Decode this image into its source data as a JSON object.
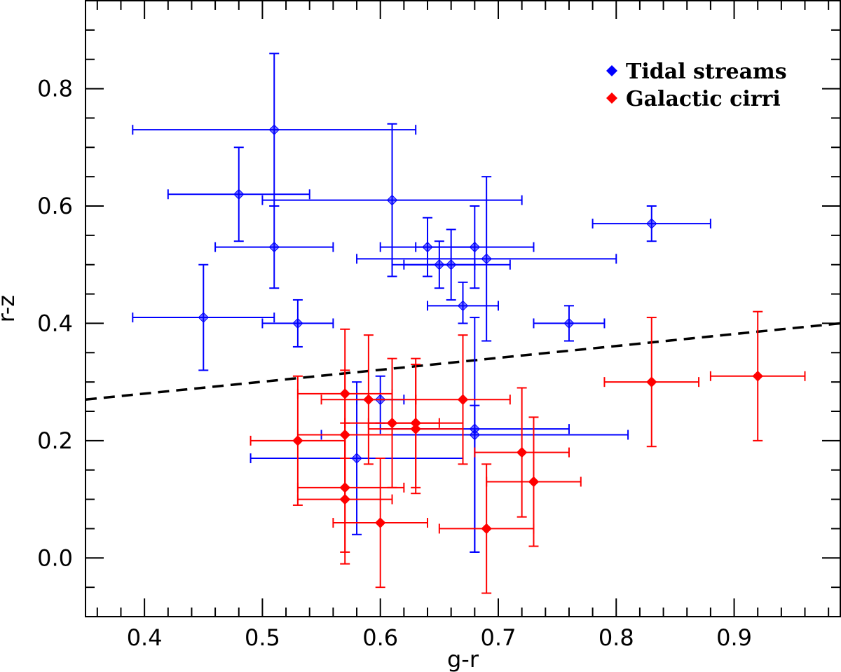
{
  "chart_data": {
    "type": "scatter",
    "title": "",
    "xlabel": "g-r",
    "ylabel": "r-z",
    "xlim": [
      0.35,
      0.99
    ],
    "ylim": [
      -0.1,
      0.95
    ],
    "xticks": [
      0.4,
      0.5,
      0.6,
      0.7,
      0.8,
      0.9
    ],
    "xtick_labels": [
      "0.4",
      "0.5",
      "0.6",
      "0.7",
      "0.8",
      "0.9"
    ],
    "yticks": [
      0.0,
      0.2,
      0.4,
      0.6,
      0.8
    ],
    "ytick_labels": [
      "0.0",
      "0.2",
      "0.4",
      "0.6",
      "0.8"
    ],
    "legend_position": "top-right",
    "divider_line": {
      "style": "dashed",
      "color": "#000000",
      "x": [
        0.35,
        0.99
      ],
      "y": [
        0.27,
        0.4
      ]
    },
    "series": [
      {
        "name": "Tidal streams",
        "color": "#0000ff",
        "marker": "diamond",
        "points": [
          {
            "x": 0.51,
            "y": 0.73,
            "xlo": 0.39,
            "xhi": 0.63,
            "ylo": 0.6,
            "yhi": 0.86
          },
          {
            "x": 0.48,
            "y": 0.62,
            "xlo": 0.42,
            "xhi": 0.54,
            "ylo": 0.54,
            "yhi": 0.7
          },
          {
            "x": 0.61,
            "y": 0.61,
            "xlo": 0.5,
            "xhi": 0.72,
            "ylo": 0.48,
            "yhi": 0.74
          },
          {
            "x": 0.51,
            "y": 0.53,
            "xlo": 0.46,
            "xhi": 0.56,
            "ylo": 0.46,
            "yhi": 0.6
          },
          {
            "x": 0.45,
            "y": 0.41,
            "xlo": 0.39,
            "xhi": 0.51,
            "ylo": 0.32,
            "yhi": 0.5
          },
          {
            "x": 0.53,
            "y": 0.4,
            "xlo": 0.5,
            "xhi": 0.56,
            "ylo": 0.36,
            "yhi": 0.44
          },
          {
            "x": 0.64,
            "y": 0.53,
            "xlo": 0.6,
            "xhi": 0.68,
            "ylo": 0.48,
            "yhi": 0.58
          },
          {
            "x": 0.65,
            "y": 0.5,
            "xlo": 0.62,
            "xhi": 0.68,
            "ylo": 0.46,
            "yhi": 0.54
          },
          {
            "x": 0.66,
            "y": 0.5,
            "xlo": 0.61,
            "xhi": 0.71,
            "ylo": 0.44,
            "yhi": 0.56
          },
          {
            "x": 0.68,
            "y": 0.53,
            "xlo": 0.63,
            "xhi": 0.73,
            "ylo": 0.46,
            "yhi": 0.6
          },
          {
            "x": 0.69,
            "y": 0.51,
            "xlo": 0.58,
            "xhi": 0.8,
            "ylo": 0.37,
            "yhi": 0.65
          },
          {
            "x": 0.67,
            "y": 0.43,
            "xlo": 0.64,
            "xhi": 0.7,
            "ylo": 0.4,
            "yhi": 0.47
          },
          {
            "x": 0.76,
            "y": 0.4,
            "xlo": 0.73,
            "xhi": 0.79,
            "ylo": 0.37,
            "yhi": 0.43
          },
          {
            "x": 0.83,
            "y": 0.57,
            "xlo": 0.78,
            "xhi": 0.88,
            "ylo": 0.54,
            "yhi": 0.6
          },
          {
            "x": 0.6,
            "y": 0.27,
            "xlo": 0.58,
            "xhi": 0.62,
            "ylo": 0.23,
            "yhi": 0.31
          },
          {
            "x": 0.68,
            "y": 0.22,
            "xlo": 0.6,
            "xhi": 0.76,
            "ylo": 0.01,
            "yhi": 0.26
          },
          {
            "x": 0.68,
            "y": 0.21,
            "xlo": 0.55,
            "xhi": 0.81,
            "ylo": 0.01,
            "yhi": 0.41
          },
          {
            "x": 0.58,
            "y": 0.17,
            "xlo": 0.49,
            "xhi": 0.67,
            "ylo": 0.04,
            "yhi": 0.3
          }
        ]
      },
      {
        "name": "Galactic cirri",
        "color": "#ff0000",
        "marker": "diamond",
        "points": [
          {
            "x": 0.53,
            "y": 0.2,
            "xlo": 0.49,
            "xhi": 0.57,
            "ylo": 0.09,
            "yhi": 0.31
          },
          {
            "x": 0.57,
            "y": 0.28,
            "xlo": 0.53,
            "xhi": 0.61,
            "ylo": 0.17,
            "yhi": 0.39
          },
          {
            "x": 0.57,
            "y": 0.21,
            "xlo": 0.53,
            "xhi": 0.61,
            "ylo": 0.1,
            "yhi": 0.32
          },
          {
            "x": 0.57,
            "y": 0.12,
            "xlo": 0.53,
            "xhi": 0.62,
            "ylo": 0.01,
            "yhi": 0.23
          },
          {
            "x": 0.57,
            "y": 0.1,
            "xlo": 0.53,
            "xhi": 0.61,
            "ylo": -0.01,
            "yhi": 0.21
          },
          {
            "x": 0.59,
            "y": 0.27,
            "xlo": 0.55,
            "xhi": 0.63,
            "ylo": 0.16,
            "yhi": 0.38
          },
          {
            "x": 0.6,
            "y": 0.06,
            "xlo": 0.56,
            "xhi": 0.64,
            "ylo": -0.05,
            "yhi": 0.17
          },
          {
            "x": 0.61,
            "y": 0.23,
            "xlo": 0.57,
            "xhi": 0.65,
            "ylo": 0.12,
            "yhi": 0.34
          },
          {
            "x": 0.63,
            "y": 0.23,
            "xlo": 0.59,
            "xhi": 0.67,
            "ylo": 0.12,
            "yhi": 0.34
          },
          {
            "x": 0.63,
            "y": 0.22,
            "xlo": 0.59,
            "xhi": 0.67,
            "ylo": 0.11,
            "yhi": 0.33
          },
          {
            "x": 0.67,
            "y": 0.27,
            "xlo": 0.63,
            "xhi": 0.71,
            "ylo": 0.16,
            "yhi": 0.38
          },
          {
            "x": 0.69,
            "y": 0.05,
            "xlo": 0.65,
            "xhi": 0.73,
            "ylo": -0.06,
            "yhi": 0.16
          },
          {
            "x": 0.72,
            "y": 0.18,
            "xlo": 0.68,
            "xhi": 0.76,
            "ylo": 0.07,
            "yhi": 0.29
          },
          {
            "x": 0.73,
            "y": 0.13,
            "xlo": 0.69,
            "xhi": 0.77,
            "ylo": 0.02,
            "yhi": 0.24
          },
          {
            "x": 0.83,
            "y": 0.3,
            "xlo": 0.79,
            "xhi": 0.87,
            "ylo": 0.19,
            "yhi": 0.41
          },
          {
            "x": 0.92,
            "y": 0.31,
            "xlo": 0.88,
            "xhi": 0.96,
            "ylo": 0.2,
            "yhi": 0.42
          }
        ]
      }
    ]
  }
}
